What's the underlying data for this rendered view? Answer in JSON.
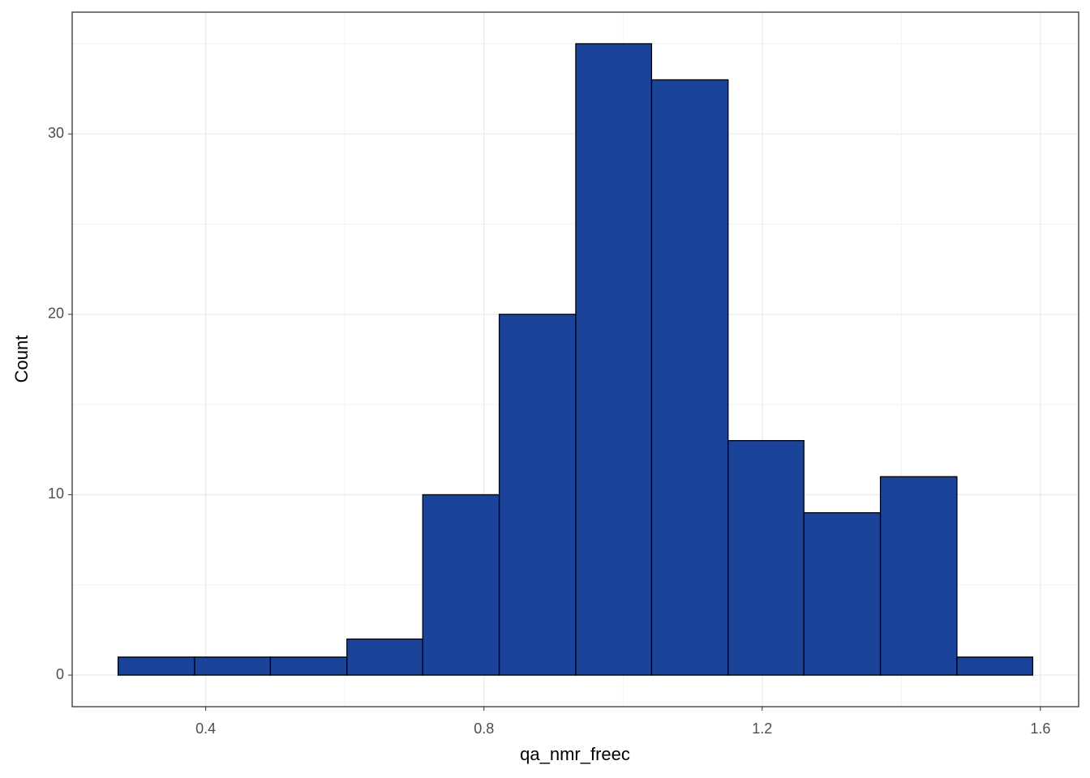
{
  "chart_data": {
    "type": "histogram",
    "x_label": "qa_nmr_freec",
    "y_label": "Count",
    "bins": [
      0.274,
      0.384,
      0.493,
      0.603,
      0.712,
      0.822,
      0.932,
      1.041,
      1.151,
      1.26,
      1.37,
      1.48,
      1.589
    ],
    "values": [
      1,
      1,
      1,
      2,
      10,
      20,
      35,
      33,
      13,
      9,
      11,
      1
    ],
    "color": "#1a4399",
    "xlim": [
      0.208,
      1.655
    ],
    "xticks": [
      {
        "value": 0.4,
        "label": "0.4"
      },
      {
        "value": 0.8,
        "label": "0.8"
      },
      {
        "value": 1.2,
        "label": "1.2"
      },
      {
        "value": 1.6,
        "label": "1.6"
      }
    ],
    "ylim": [
      -1.75,
      36.75
    ],
    "yticks": [
      0,
      10,
      20,
      30
    ],
    "grid": true
  }
}
